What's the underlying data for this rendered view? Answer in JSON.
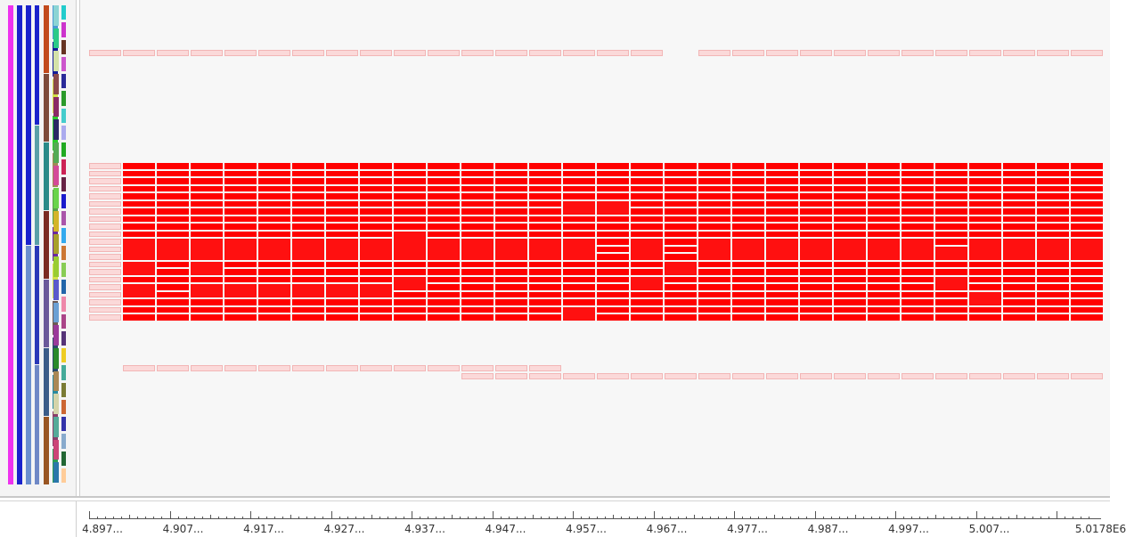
{
  "axis": {
    "tick_labels": [
      "4.897...",
      "4.907...",
      "4.917...",
      "4.927...",
      "4.937...",
      "4.947...",
      "4.957...",
      "4.967...",
      "4.977...",
      "4.987...",
      "4.997...",
      "5.007...",
      "5.0178E6"
    ]
  },
  "colors": {
    "activity_red": "#ff0000",
    "activity_bright": "#ff1010",
    "light_pink": "#fbd9d9",
    "light_pink_border": "#f2b6b6",
    "panel_bg": "#f7f7f7"
  },
  "timeline": {
    "column_count": 30,
    "missing_top_column": 17,
    "bottom_row1_columns": [
      1,
      13
    ],
    "bottom_row2_columns": [
      11,
      29
    ]
  },
  "legend_strips": {
    "column_colors": [
      [
        "#ee33ee"
      ],
      [
        "#1a22cc"
      ],
      [
        "#1a22cc",
        "#6b8fcf"
      ],
      [
        "#1a22cc",
        "#5aa0a8",
        "#2a38b8",
        "#6f88c6"
      ],
      [
        "#c24a1c",
        "#7e4b3a",
        "#2a8a88",
        "#7b2a22",
        "#6b5a9a",
        "#3b5c88",
        "#995522"
      ],
      [
        "#4a9ad4",
        "#141d99",
        "#d3e24a",
        "#2cca2c",
        "#a08a55",
        "#58a04a",
        "#6a2aa0",
        "#d3e24a",
        "#6b5a55",
        "#2a4b6a",
        "#2a8aa0",
        "#8a3e6a",
        "#2a9a55"
      ],
      [
        "#8bd4d4",
        "#2cca88",
        "#d4e2a8",
        "#8b4a4a",
        "#8a2a66",
        "#2a2a66",
        "#55aa55",
        "#d44a99",
        "#6ad44a",
        "#d4b42a",
        "#a8a02a",
        "#99cc33",
        "#5a5acc",
        "#6aa0d4",
        "#9a3a9a",
        "#2a8a2a",
        "#aa8855",
        "#d4d4aa",
        "#55aa99",
        "#cc4477",
        "#2a77aa"
      ],
      [
        "#22cccc",
        "#cc33cc",
        "#663322",
        "#cc55cc",
        "#2a2a99",
        "#2a9a2a",
        "#44cccc",
        "#aaaaee",
        "#22aa22",
        "#cc2255",
        "#662244",
        "#1a1acc",
        "#aa55aa",
        "#33aaee",
        "#cc7733",
        "#88cc55",
        "#2266aa",
        "#ee88aa",
        "#aa4488",
        "#553377",
        "#eecc22",
        "#44aa99",
        "#7a7a33",
        "#cc6633",
        "#3333aa",
        "#88aacc",
        "#226633",
        "#ffcc99"
      ]
    ]
  }
}
